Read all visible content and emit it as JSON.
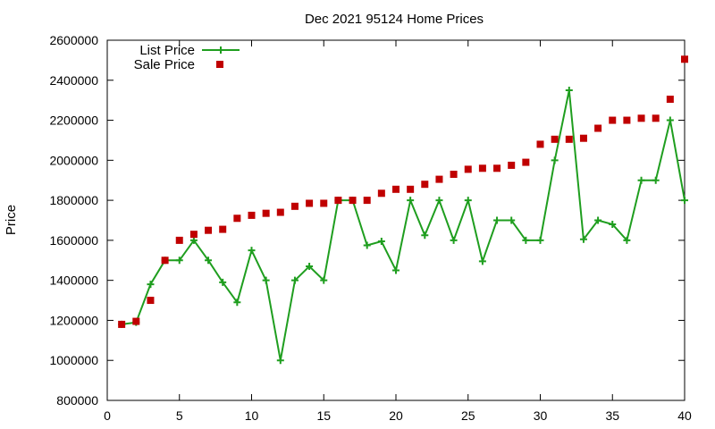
{
  "chart_data": {
    "type": "line",
    "title": "Dec 2021 95124 Home Prices",
    "xlabel": "",
    "ylabel": "Price",
    "xlim": [
      0,
      40
    ],
    "ylim": [
      800000,
      2600000
    ],
    "xticks": [
      0,
      5,
      10,
      15,
      20,
      25,
      30,
      35,
      40
    ],
    "yticks": [
      800000,
      1000000,
      1200000,
      1400000,
      1600000,
      1800000,
      2000000,
      2200000,
      2400000,
      2600000
    ],
    "grid": false,
    "legend": "top-left",
    "x": [
      1,
      2,
      3,
      4,
      5,
      6,
      7,
      8,
      9,
      10,
      11,
      12,
      13,
      14,
      15,
      16,
      17,
      18,
      19,
      20,
      21,
      22,
      23,
      24,
      25,
      26,
      27,
      28,
      29,
      30,
      31,
      32,
      33,
      34,
      35,
      36,
      37,
      38,
      39,
      40
    ],
    "series": [
      {
        "name": "List Price",
        "style": "line-plus",
        "color": "#1f9e1f",
        "values": [
          1180000,
          1190000,
          1380000,
          1500000,
          1500000,
          1600000,
          1500000,
          1390000,
          1290000,
          1550000,
          1400000,
          1000000,
          1400000,
          1470000,
          1400000,
          1800000,
          1800000,
          1575000,
          1595000,
          1450000,
          1800000,
          1625000,
          1800000,
          1600000,
          1800000,
          1495000,
          1700000,
          1700000,
          1600000,
          1600000,
          2000000,
          2350000,
          1605000,
          1700000,
          1680000,
          1600000,
          1900000,
          1900000,
          2200000,
          1800000
        ]
      },
      {
        "name": "Sale Price",
        "style": "square-points",
        "color": "#c00000",
        "values": [
          1180000,
          1195000,
          1300000,
          1500000,
          1600000,
          1630000,
          1650000,
          1655000,
          1710000,
          1725000,
          1735000,
          1740000,
          1770000,
          1785000,
          1785000,
          1800000,
          1800000,
          1800000,
          1835000,
          1855000,
          1855000,
          1880000,
          1905000,
          1930000,
          1955000,
          1960000,
          1960000,
          1975000,
          1990000,
          2080000,
          2105000,
          2105000,
          2110000,
          2160000,
          2200000,
          2200000,
          2210000,
          2210000,
          2305000,
          2505000
        ]
      }
    ]
  }
}
